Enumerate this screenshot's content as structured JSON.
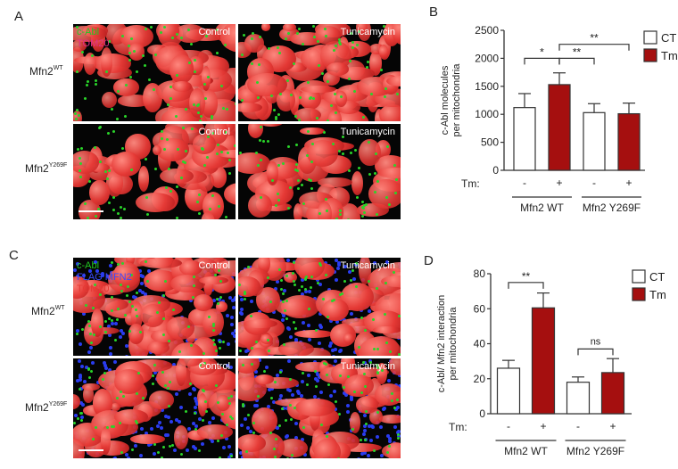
{
  "panels": {
    "A": {
      "letter": "A",
      "channels": [
        {
          "label": "c-Abl",
          "color": "#22c722"
        },
        {
          "label": "TOM20",
          "color": "#e0308a"
        }
      ],
      "rows": [
        {
          "label": "Mfn2",
          "sup": "WT"
        },
        {
          "label": "Mfn2",
          "sup": "Y269F"
        }
      ],
      "conditions": [
        "Control",
        "Tunicamycin",
        "Control",
        "Tunicamycin"
      ]
    },
    "C": {
      "letter": "C",
      "channels": [
        {
          "label": "c-Abl",
          "color": "#22c722"
        },
        {
          "label": "FLAG MFN2",
          "color": "#3b4bff"
        },
        {
          "label": "TOM20",
          "color": "#e53935"
        }
      ],
      "rows": [
        {
          "label": "Mfn2",
          "sup": "WT"
        },
        {
          "label": "Mfn2",
          "sup": "Y269F"
        }
      ],
      "conditions": [
        "Control",
        "Tunicamycin",
        "Control",
        "Tunicamycin"
      ]
    },
    "B": {
      "letter": "B"
    },
    "D": {
      "letter": "D"
    }
  },
  "colors": {
    "ct": "#ffffff",
    "tm": "#a50f0f",
    "axis": "#333333"
  },
  "chart_data": [
    {
      "panel": "B",
      "type": "bar",
      "title": "",
      "ylabel": "c-Abl molecules per mitochondria",
      "ylabel_lines": [
        "c-Abl molecules",
        "per mitochondria"
      ],
      "ylim": [
        0,
        2500
      ],
      "yticks": [
        0,
        500,
        1000,
        1500,
        2000,
        2500
      ],
      "categories": [
        "Mfn2 WT -",
        "Mfn2 WT +",
        "Mfn2 Y269F -",
        "Mfn2 Y269F +"
      ],
      "tm_row_label": "Tm:",
      "tm_signs": [
        "-",
        "+",
        "-",
        "+"
      ],
      "groups": [
        "Mfn2 WT",
        "Mfn2 Y269F"
      ],
      "series": [
        {
          "name": "CT",
          "values": [
            1120,
            null,
            1030,
            null
          ],
          "errors": [
            250,
            null,
            160,
            null
          ]
        },
        {
          "name": "Tm",
          "values": [
            null,
            1530,
            null,
            1010
          ],
          "errors": [
            null,
            210,
            null,
            190
          ]
        }
      ],
      "legend": [
        "CT",
        "Tm"
      ],
      "legend_position": "top-right",
      "grid": false,
      "significance": [
        {
          "from": 0,
          "to": 1,
          "label": "*",
          "y": 2000
        },
        {
          "from": 1,
          "to": 2,
          "label": "**",
          "y": 2000
        },
        {
          "from": 1,
          "to": 3,
          "label": "**",
          "y": 2250
        }
      ]
    },
    {
      "panel": "D",
      "type": "bar",
      "title": "",
      "ylabel": "c-Abl/ Mfn2 interaction per mitochondria",
      "ylabel_lines": [
        "c-Abl/ Mfn2 interaction",
        "per mitochondria"
      ],
      "ylim": [
        0,
        80
      ],
      "yticks": [
        0,
        20,
        40,
        60,
        80
      ],
      "categories": [
        "Mfn2 WT -",
        "Mfn2 WT +",
        "Mfn2 Y269F -",
        "Mfn2 Y269F +"
      ],
      "tm_row_label": "Tm:",
      "tm_signs": [
        "-",
        "+",
        "-",
        "+"
      ],
      "groups": [
        "Mfn2 WT",
        "Mfn2 Y269F"
      ],
      "series": [
        {
          "name": "CT",
          "values": [
            26,
            null,
            18,
            null
          ],
          "errors": [
            4.5,
            null,
            3,
            null
          ]
        },
        {
          "name": "Tm",
          "values": [
            null,
            60.5,
            null,
            23.5
          ],
          "errors": [
            null,
            8.5,
            null,
            8
          ]
        }
      ],
      "legend": [
        "CT",
        "Tm"
      ],
      "legend_position": "top-right",
      "grid": false,
      "significance": [
        {
          "from": 0,
          "to": 1,
          "label": "**",
          "y": 75
        },
        {
          "from": 2,
          "to": 3,
          "label": "ns",
          "y": 37
        }
      ]
    }
  ]
}
